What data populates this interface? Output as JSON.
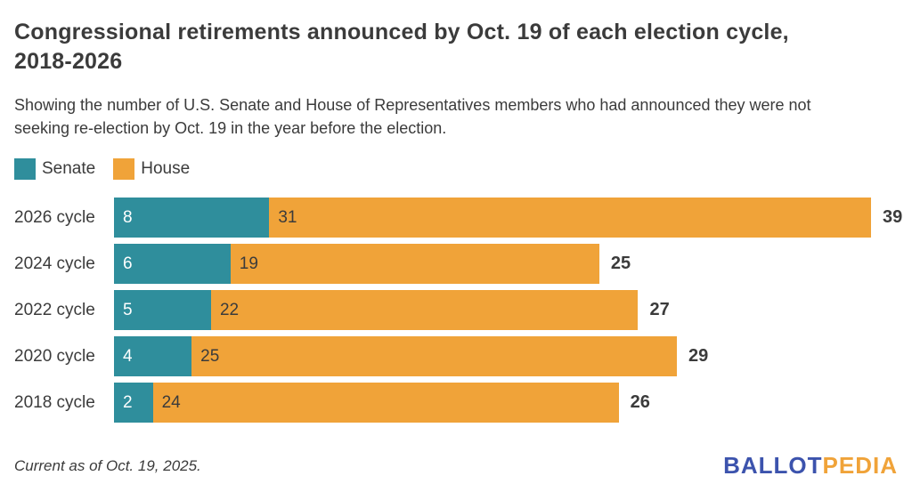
{
  "header": {
    "title_lines": [
      "Congressional retirements announced by Oct. 19 of each election cycle,",
      "2018-2026"
    ],
    "subtitle_lines": [
      "Showing the number of U.S. Senate and House of Representatives members who had announced they were not",
      "seeking re-election by Oct. 19 in the year before the election."
    ]
  },
  "legend": {
    "items": [
      {
        "label": "Senate",
        "color": "#2f8e9c"
      },
      {
        "label": "House",
        "color": "#f0a339"
      }
    ]
  },
  "chart_data": {
    "type": "bar",
    "orientation": "horizontal",
    "stacked": true,
    "title": "Congressional retirements announced by Oct. 19 of each election cycle, 2018-2026",
    "categories": [
      "2026 cycle",
      "2024 cycle",
      "2022 cycle",
      "2020 cycle",
      "2018 cycle"
    ],
    "series": [
      {
        "name": "Senate",
        "color": "#2f8e9c",
        "values": [
          8,
          6,
          5,
          4,
          2
        ]
      },
      {
        "name": "House",
        "color": "#f0a339",
        "values": [
          31,
          19,
          22,
          25,
          24
        ]
      }
    ],
    "totals": [
      39,
      25,
      27,
      29,
      26
    ],
    "xlim": [
      0,
      39
    ],
    "grid": false,
    "legend_position": "top-left"
  },
  "footer": {
    "note": "Current as of Oct. 19, 2025.",
    "logo": {
      "part1": "BALLOT",
      "part2": "PEDIA",
      "color1": "#3c53ad",
      "color2": "#f0a339"
    }
  },
  "colors": {
    "senate": "#2f8e9c",
    "house": "#f0a339",
    "text": "#3b3b3b",
    "background": "#ffffff"
  }
}
